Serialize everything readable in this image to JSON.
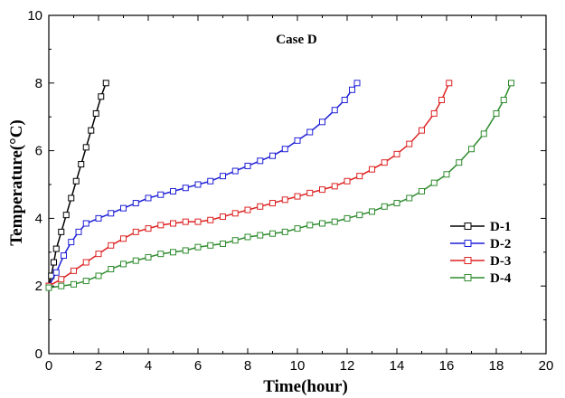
{
  "chart_data": {
    "type": "line",
    "title": "Case D",
    "xlabel": "Time(hour)",
    "ylabel": "Temperature(°C)",
    "xlim": [
      0,
      20
    ],
    "ylim": [
      0,
      10
    ],
    "xticks": [
      "0",
      "2",
      "4",
      "6",
      "8",
      "10",
      "12",
      "14",
      "16",
      "18",
      "20"
    ],
    "yticks": [
      "0",
      "2",
      "4",
      "6",
      "8",
      "10"
    ],
    "grid": false,
    "legend_position": "right",
    "marker": "open-square",
    "series": [
      {
        "name": "D-1",
        "color": "#000000",
        "x": [
          0.0,
          0.1,
          0.2,
          0.3,
          0.5,
          0.7,
          0.9,
          1.1,
          1.3,
          1.5,
          1.7,
          1.9,
          2.1,
          2.3
        ],
        "y": [
          2.0,
          2.3,
          2.7,
          3.1,
          3.6,
          4.1,
          4.6,
          5.1,
          5.6,
          6.1,
          6.6,
          7.1,
          7.6,
          8.0
        ]
      },
      {
        "name": "D-2",
        "color": "#1f1fd6",
        "x": [
          0.0,
          0.3,
          0.6,
          0.9,
          1.2,
          1.5,
          2.0,
          2.5,
          3.0,
          3.5,
          4.0,
          4.5,
          5.0,
          5.5,
          6.0,
          6.5,
          7.0,
          7.5,
          8.0,
          8.5,
          9.0,
          9.5,
          10.0,
          10.5,
          11.0,
          11.5,
          11.9,
          12.2,
          12.4
        ],
        "y": [
          2.0,
          2.4,
          2.9,
          3.3,
          3.6,
          3.85,
          4.0,
          4.15,
          4.3,
          4.45,
          4.6,
          4.7,
          4.8,
          4.9,
          5.0,
          5.1,
          5.25,
          5.4,
          5.55,
          5.7,
          5.85,
          6.05,
          6.3,
          6.55,
          6.85,
          7.2,
          7.5,
          7.8,
          8.0
        ]
      },
      {
        "name": "D-3",
        "color": "#dd2222",
        "x": [
          0.0,
          0.5,
          1.0,
          1.5,
          2.0,
          2.5,
          3.0,
          3.5,
          4.0,
          4.5,
          5.0,
          5.5,
          6.0,
          6.5,
          7.0,
          7.5,
          8.0,
          8.5,
          9.0,
          9.5,
          10.0,
          10.5,
          11.0,
          11.5,
          12.0,
          12.5,
          13.0,
          13.5,
          14.0,
          14.5,
          15.0,
          15.5,
          15.8,
          16.1
        ],
        "y": [
          2.0,
          2.2,
          2.45,
          2.7,
          2.95,
          3.2,
          3.4,
          3.6,
          3.7,
          3.8,
          3.85,
          3.9,
          3.9,
          3.95,
          4.05,
          4.15,
          4.25,
          4.35,
          4.45,
          4.55,
          4.65,
          4.75,
          4.85,
          4.95,
          5.1,
          5.25,
          5.45,
          5.65,
          5.9,
          6.2,
          6.6,
          7.1,
          7.5,
          8.0
        ]
      },
      {
        "name": "D-4",
        "color": "#2e8b2e",
        "x": [
          0.0,
          0.5,
          1.0,
          1.5,
          2.0,
          2.5,
          3.0,
          3.5,
          4.0,
          4.5,
          5.0,
          5.5,
          6.0,
          6.5,
          7.0,
          7.5,
          8.0,
          8.5,
          9.0,
          9.5,
          10.0,
          10.5,
          11.0,
          11.5,
          12.0,
          12.5,
          13.0,
          13.5,
          14.0,
          14.5,
          15.0,
          15.5,
          16.0,
          16.5,
          17.0,
          17.5,
          18.0,
          18.3,
          18.6
        ],
        "y": [
          1.95,
          2.0,
          2.05,
          2.15,
          2.3,
          2.5,
          2.65,
          2.75,
          2.85,
          2.95,
          3.0,
          3.05,
          3.15,
          3.2,
          3.25,
          3.35,
          3.45,
          3.5,
          3.55,
          3.6,
          3.7,
          3.8,
          3.85,
          3.9,
          4.0,
          4.1,
          4.2,
          4.35,
          4.45,
          4.6,
          4.8,
          5.05,
          5.3,
          5.65,
          6.05,
          6.5,
          7.1,
          7.5,
          8.0
        ]
      }
    ]
  }
}
